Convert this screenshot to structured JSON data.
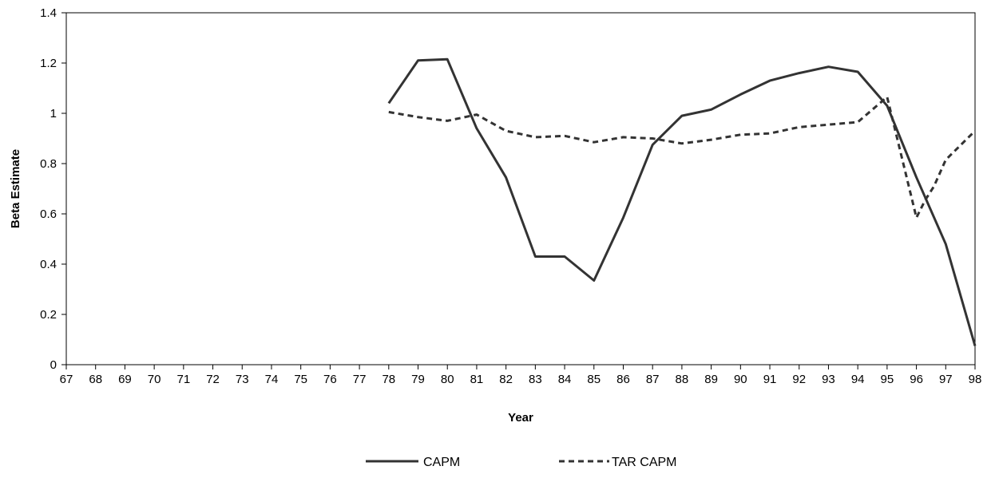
{
  "chart_data": {
    "type": "line",
    "title": "",
    "xlabel": "Year",
    "ylabel": "Beta Estimate",
    "x_ticks": [
      "67",
      "68",
      "69",
      "70",
      "71",
      "72",
      "73",
      "74",
      "75",
      "76",
      "77",
      "78",
      "79",
      "80",
      "81",
      "82",
      "83",
      "84",
      "85",
      "86",
      "87",
      "88",
      "89",
      "90",
      "91",
      "92",
      "93",
      "94",
      "95",
      "96",
      "97",
      "98"
    ],
    "y_ticks": [
      "0",
      "0.2",
      "0.4",
      "0.6",
      "0.8",
      "1",
      "1.2",
      "1.4"
    ],
    "xlim": [
      67,
      98
    ],
    "ylim": [
      0,
      1.4
    ],
    "grid": false,
    "legend_position": "bottom",
    "series": [
      {
        "name": "CAPM",
        "style": "solid",
        "color": "#333333",
        "points": [
          [
            78,
            1.04
          ],
          [
            79,
            1.21
          ],
          [
            80,
            1.215
          ],
          [
            81,
            0.94
          ],
          [
            82,
            0.745
          ],
          [
            83,
            0.43
          ],
          [
            84,
            0.43
          ],
          [
            85,
            0.335
          ],
          [
            86,
            0.585
          ],
          [
            87,
            0.875
          ],
          [
            88,
            0.99
          ],
          [
            89,
            1.015
          ],
          [
            90,
            1.075
          ],
          [
            91,
            1.13
          ],
          [
            92,
            1.16
          ],
          [
            93,
            1.185
          ],
          [
            94,
            1.165
          ],
          [
            95,
            1.03
          ],
          [
            96,
            0.745
          ],
          [
            97,
            0.48
          ],
          [
            98,
            0.075
          ]
        ]
      },
      {
        "name": "TAR CAPM",
        "style": "dashed",
        "color": "#333333",
        "points": [
          [
            78,
            1.005
          ],
          [
            79,
            0.985
          ],
          [
            80,
            0.97
          ],
          [
            81,
            0.995
          ],
          [
            82,
            0.93
          ],
          [
            83,
            0.905
          ],
          [
            84,
            0.91
          ],
          [
            85,
            0.885
          ],
          [
            86,
            0.905
          ],
          [
            87,
            0.9
          ],
          [
            88,
            0.88
          ],
          [
            89,
            0.895
          ],
          [
            90,
            0.915
          ],
          [
            91,
            0.92
          ],
          [
            92,
            0.945
          ],
          [
            93,
            0.955
          ],
          [
            94,
            0.965
          ],
          [
            95,
            1.065
          ],
          [
            96,
            0.585
          ],
          [
            96.3,
            0.655
          ],
          [
            96.6,
            0.71
          ],
          [
            97,
            0.815
          ],
          [
            98,
            0.93
          ]
        ]
      }
    ]
  }
}
